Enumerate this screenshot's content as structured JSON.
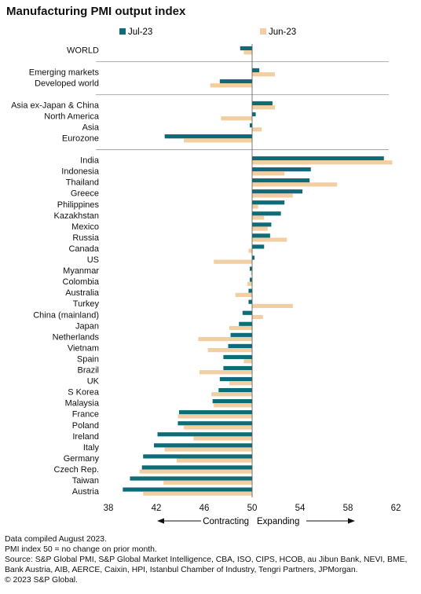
{
  "chart_data": {
    "type": "bar",
    "orientation": "horizontal",
    "title": "Manufacturing PMI output index",
    "xlim": [
      38,
      62
    ],
    "xticks": [
      38,
      42,
      46,
      50,
      54,
      58,
      62
    ],
    "reference_value": 50,
    "legend_position": "top",
    "colors": {
      "Jul-23": "#0e6b78",
      "Jun-23": "#f2cfa2"
    },
    "series": [
      {
        "name": "Jul-23"
      },
      {
        "name": "Jun-23"
      }
    ],
    "groups": [
      {
        "rows": [
          {
            "label": "WORLD",
            "jul": 49.0,
            "jun": 49.3
          }
        ]
      },
      {
        "rows": [
          {
            "label": "Emerging markets",
            "jul": 50.6,
            "jun": 51.9
          },
          {
            "label": "Developed world",
            "jul": 47.3,
            "jun": 46.5
          }
        ]
      },
      {
        "rows": [
          {
            "label": "Asia ex-Japan & China",
            "jul": 51.7,
            "jun": 51.9
          },
          {
            "label": "North America",
            "jul": 50.3,
            "jun": 47.4
          },
          {
            "label": "Asia",
            "jul": 49.8,
            "jun": 50.8
          },
          {
            "label": "Eurozone",
            "jul": 42.7,
            "jun": 44.3
          }
        ]
      },
      {
        "rows": [
          {
            "label": "India",
            "jul": 61.0,
            "jun": 61.7
          },
          {
            "label": "Indonesia",
            "jul": 54.9,
            "jun": 52.7
          },
          {
            "label": "Thailand",
            "jul": 54.8,
            "jun": 57.1
          },
          {
            "label": "Greece",
            "jul": 54.2,
            "jun": 53.4
          },
          {
            "label": "Philippines",
            "jul": 52.7,
            "jun": 50.5
          },
          {
            "label": "Kazakhstan",
            "jul": 52.4,
            "jun": 51.0
          },
          {
            "label": "Mexico",
            "jul": 51.6,
            "jun": 51.3
          },
          {
            "label": "Russia",
            "jul": 51.5,
            "jun": 52.9
          },
          {
            "label": "Canada",
            "jul": 51.0,
            "jun": 49.7
          },
          {
            "label": "US",
            "jul": 50.2,
            "jun": 46.8
          },
          {
            "label": "Myanmar",
            "jul": 49.8,
            "jun": 49.9
          },
          {
            "label": "Colombia",
            "jul": 49.8,
            "jun": 49.6
          },
          {
            "label": "Australia",
            "jul": 49.7,
            "jun": 48.6
          },
          {
            "label": "Turkey",
            "jul": 49.7,
            "jun": 53.4
          },
          {
            "label": "China (mainland)",
            "jul": 49.2,
            "jun": 50.9
          },
          {
            "label": "Japan",
            "jul": 48.9,
            "jun": 48.1
          },
          {
            "label": "Netherlands",
            "jul": 48.2,
            "jun": 45.5
          },
          {
            "label": "Vietnam",
            "jul": 48.0,
            "jun": 46.3
          },
          {
            "label": "Spain",
            "jul": 47.6,
            "jun": 49.3
          },
          {
            "label": "Brazil",
            "jul": 47.6,
            "jun": 45.6
          },
          {
            "label": "UK",
            "jul": 47.3,
            "jun": 48.1
          },
          {
            "label": "S Korea",
            "jul": 47.2,
            "jun": 46.6
          },
          {
            "label": "Malaysia",
            "jul": 46.7,
            "jun": 46.8
          },
          {
            "label": "France",
            "jul": 43.9,
            "jun": 43.8
          },
          {
            "label": "Poland",
            "jul": 43.8,
            "jun": 44.3
          },
          {
            "label": "Ireland",
            "jul": 42.1,
            "jun": 45.1
          },
          {
            "label": "Italy",
            "jul": 41.8,
            "jun": 42.7
          },
          {
            "label": "Germany",
            "jul": 40.9,
            "jun": 43.7
          },
          {
            "label": "Czech Rep.",
            "jul": 40.8,
            "jun": 40.6
          },
          {
            "label": "Taiwan",
            "jul": 39.8,
            "jun": 42.6
          },
          {
            "label": "Austria",
            "jul": 39.2,
            "jun": 40.9
          }
        ]
      }
    ],
    "annotations": {
      "contracting": "Contracting",
      "expanding": "Expanding"
    }
  },
  "notes": [
    "Data compiled August 2023.",
    "PMI index 50 = no change on prior month.",
    "Source: S&P Global PMI, S&P Global Market Intelligence, CBA, ISO, CIPS, HCOB, au Jibun Bank, NEVI, BME,",
    "Bank Austria, AIB, AERCE, Caixin, HPI, Istanbul Chamber of Industry, Tengri Partners, JPMorgan.",
    "© 2023 S&P Global."
  ]
}
